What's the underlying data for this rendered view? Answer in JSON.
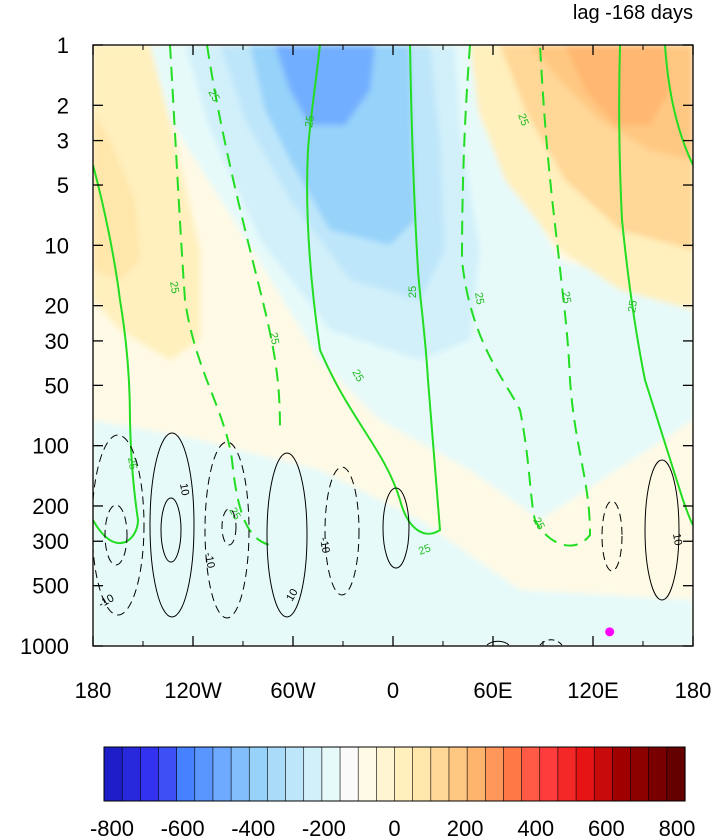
{
  "chart_data": {
    "type": "heatmap",
    "title": "lag -168 days",
    "x_ticks": [
      {
        "value": -180,
        "label": "180"
      },
      {
        "value": -120,
        "label": "120W"
      },
      {
        "value": -60,
        "label": "60W"
      },
      {
        "value": 0,
        "label": "0"
      },
      {
        "value": 60,
        "label": "60E"
      },
      {
        "value": 120,
        "label": "120E"
      },
      {
        "value": 180,
        "label": "180"
      }
    ],
    "xlim": [
      -180,
      180
    ],
    "y_ticks": [
      1,
      2,
      3,
      5,
      10,
      20,
      30,
      50,
      100,
      200,
      300,
      500,
      1000
    ],
    "ylim": [
      1,
      1000
    ],
    "y_scale": "log-reversed",
    "colorbar": {
      "min": -800,
      "max": 800,
      "step": 50,
      "labels": [
        "-800",
        "-600",
        "-400",
        "-200",
        "0",
        "200",
        "400",
        "600",
        "800"
      ],
      "colors": [
        "#1e1ec8",
        "#2828dc",
        "#3232f0",
        "#3c50f5",
        "#4682ff",
        "#5a96ff",
        "#6eaaff",
        "#82befa",
        "#96d2fa",
        "#aadcfa",
        "#bee6fa",
        "#d2f0fa",
        "#e6fafa",
        "#fafafa",
        "#fffae6",
        "#fff5d2",
        "#fff0be",
        "#ffe6aa",
        "#ffd796",
        "#ffc882",
        "#ffb46e",
        "#ff965a",
        "#ff7846",
        "#ff5a46",
        "#ff3c3c",
        "#f52828",
        "#e61414",
        "#c80a0a",
        "#a00000",
        "#8c0000",
        "#780000",
        "#640000"
      ]
    },
    "contour_labels": {
      "green": "25",
      "black_positive": "10",
      "black_negative": "-10"
    },
    "marker": {
      "lon": 130,
      "p": 850,
      "color": "#ff00ff"
    }
  }
}
